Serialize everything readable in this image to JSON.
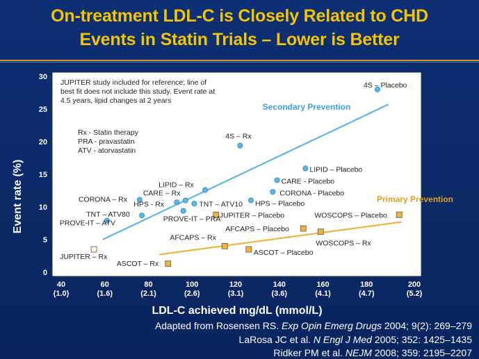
{
  "title_line1": "On-treatment LDL-C is Closely Related to CHD",
  "title_line2": "Events in Statin Trials – Lower is Better",
  "chart_data": {
    "type": "scatter",
    "title": "On-treatment LDL-C is Closely Related to CHD Events in Statin Trials – Lower is Better",
    "xlabel": "LDL-C achieved mg/dL (mmol/L)",
    "ylabel": "Event rate (%)",
    "xlim": [
      40,
      200
    ],
    "ylim": [
      0,
      30
    ],
    "x_ticks": [
      {
        "value": 40,
        "line1": "40",
        "line2": "(1.0)"
      },
      {
        "value": 60,
        "line1": "60",
        "line2": "(1.6)"
      },
      {
        "value": 80,
        "line1": "80",
        "line2": "(2.1)"
      },
      {
        "value": 100,
        "line1": "100",
        "line2": "(2.6)"
      },
      {
        "value": 120,
        "line1": "120",
        "line2": "(3.1)"
      },
      {
        "value": 140,
        "line1": "140",
        "line2": "(3.6)"
      },
      {
        "value": 160,
        "line1": "160",
        "line2": "(4.1)"
      },
      {
        "value": 180,
        "line1": "180",
        "line2": "(4.7)"
      },
      {
        "value": 200,
        "line1": "200",
        "line2": "(5.2)"
      }
    ],
    "y_ticks": [
      0,
      5,
      10,
      15,
      20,
      25,
      30
    ],
    "note": [
      "JUPITER study included for reference; line of",
      "best fit does not include this study. Event rate at",
      "4.5 years, lipid changes at 2 years"
    ],
    "legend_abbrev": [
      "Rx - Statin therapy",
      "PRA - pravastatin",
      "ATV - atorvastatin"
    ],
    "series": [
      {
        "name": "Secondary Prevention",
        "color": "#5bb6ea",
        "marker": "circle",
        "trendline": {
          "x": [
            59,
            190
          ],
          "y": [
            5.0,
            25.7
          ]
        },
        "points": [
          {
            "x": 185,
            "y": 28.0,
            "label": "4S – Placebo"
          },
          {
            "x": 122,
            "y": 19.4,
            "label": "4S – Rx"
          },
          {
            "x": 152,
            "y": 15.9,
            "label": "LIPID – Placebo"
          },
          {
            "x": 139,
            "y": 14.1,
            "label": "CARE - Placebo"
          },
          {
            "x": 137,
            "y": 12.3,
            "label": "CORONA - Placebo"
          },
          {
            "x": 127,
            "y": 11.0,
            "label": "HPS – Placebo"
          },
          {
            "x": 106,
            "y": 12.6,
            "label": "LIPID – Rx"
          },
          {
            "x": 97,
            "y": 11.0,
            "label": "CARE – Rx"
          },
          {
            "x": 76,
            "y": 11.1,
            "label": "CORONA – Rx"
          },
          {
            "x": 93,
            "y": 10.7,
            "label": "HPS - Rx"
          },
          {
            "x": 101,
            "y": 10.5,
            "label": "TNT – ATV10"
          },
          {
            "x": 96,
            "y": 9.4,
            "label": "PROVE-IT – PRA"
          },
          {
            "x": 77,
            "y": 8.7,
            "label": "TNT – ATV80"
          },
          {
            "x": 61,
            "y": 7.9,
            "label": "PROVE-IT – ATV"
          }
        ]
      },
      {
        "name": "Primary Prevention",
        "color": "#f0b43e",
        "marker": "square",
        "trendline": {
          "x": [
            85,
            196
          ],
          "y": [
            2.7,
            7.7
          ]
        },
        "points": [
          {
            "x": 195,
            "y": 8.8,
            "label": "WOSCOPS – Placebo"
          },
          {
            "x": 151,
            "y": 6.7,
            "label": "AFCAPS – Placebo"
          },
          {
            "x": 159,
            "y": 6.2,
            "label": "WOSCOPS – Rx"
          },
          {
            "x": 115,
            "y": 4.0,
            "label": "AFCAPS – Rx"
          },
          {
            "x": 126,
            "y": 3.5,
            "label": "ASCOT – Placebo"
          },
          {
            "x": 89,
            "y": 1.3,
            "label": "ASCOT – Rx"
          },
          {
            "x": 111,
            "y": 8.8,
            "label": "JUPITER – Placebo"
          },
          {
            "x": 55,
            "y": 3.5,
            "label": "JUPITER – Rx",
            "reference_only": true
          }
        ]
      }
    ]
  },
  "credits": {
    "line1_prefix": "Adapted from Rosensen RS. ",
    "line1_journal": "Exp Opin Emerg Drugs",
    "line1_suffix": " 2004; 9(2): 269–279",
    "line2_prefix": "LaRosa JC et al. ",
    "line2_journal": "N Engl J Med",
    "line2_suffix": " 2005; 352: 1425–1435",
    "line3_prefix": "Ridker PM et al. ",
    "line3_journal": "NEJM",
    "line3_suffix": " 2008; 359: 2195–2207"
  }
}
